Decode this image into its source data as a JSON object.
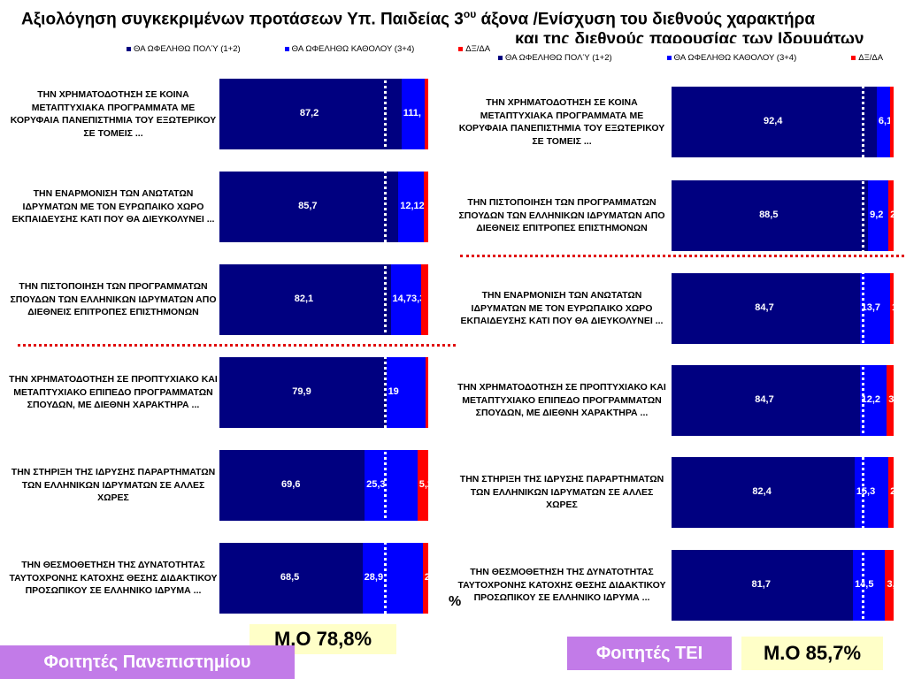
{
  "title": {
    "line1": "Αξιολόγηση συγκεκριμένων προτάσεων Υπ. Παιδείας 3",
    "sup": "ου",
    "line1_tail": " άξονα /Ενίσχυση του διεθνούς χαρακτήρα",
    "line2": "και της διεθνούς παρουσίας των Ιδρυμάτων"
  },
  "legend": {
    "items": [
      "ΘΑ ΩΦΕΛΗΘΩ ΠΟΛΎ (1+2)",
      "ΘΑ ΩΦΕΛΗΘΩ ΚΑΘΟΛΟΥ (3+4)",
      "ΔΞ/ΔΑ"
    ],
    "right_items": [
      "ΘΑ ΩΦΕΛΗΘΩ ΠΟΛΎ (1+2)",
      "ΘΑ ΩΦΕΛΗΘΩ ΚΑΘΟΛΟΥ (3+4)",
      "ΔΞ/ΔΑ"
    ]
  },
  "colors": {
    "much": "#000080",
    "not_at_all": "#0000ff",
    "dk": "#ff0000",
    "badge": "#c27be8",
    "mean_bg": "#ffffc8"
  },
  "chart_data": [
    {
      "type": "bar",
      "stacked": true,
      "orientation": "horizontal",
      "categories": [
        "ΤΗΝ ΧΡΗΜΑΤΟΔΟΤΗΣΗ ΣΕ ΚΟΙΝΑ ΜΕΤΑΠΤΥΧΙΑΚΑ ΠΡΟΓΡΑΜΜΑΤΑ ΜΕ ΚΟΡΥΦΑΙΑ ΠΑΝΕΠΙΣΤΗΜΙΑ ΤΟΥ ΕΞΩΤΕΡΙΚΟΥ ΣΕ ΤΟΜΕΙΣ ...",
        "ΤΗΝ ΕΝΑΡΜΟΝΙΣΗ ΤΩΝ ΑΝΩΤΑΤΩΝ ΙΔΡΥΜΑΤΩΝ ΜΕ ΤΟΝ ΕΥΡΩΠΑΙΚΟ ΧΩΡΟ ΕΚΠΑΙΔΕΥΣΗΣ ΚΑΤΙ ΠΟΥ ΘΑ ΔΙΕΥΚΟΛΥΝΕΙ ...",
        "ΤΗΝ ΠΙΣΤΟΠΟΙΗΣΗ ΤΩΝ ΠΡΟΓΡΑΜΜΑΤΩΝ ΣΠΟΥΔΩΝ ΤΩΝ ΕΛΛΗΝΙΚΩΝ ΙΔΡΥΜΑΤΩΝ ΑΠΟ ΔΙΕΘΝΕΙΣ ΕΠΙΤΡΟΠΕΣ ΕΠΙΣΤΗΜΟΝΩΝ",
        "ΤΗΝ ΧΡΗΜΑΤΟΔΟΤΗΣΗ ΣΕ ΠΡΟΠΤΥΧΙΑΚΟ ΚΑΙ ΜΕΤΑΠΤΥΧΙΑΚΟ ΕΠΙΠΕΔΟ ΠΡΟΓΡΑΜΜΑΤΩΝ ΣΠΟΥΔΩΝ, ΜΕ ΔΙΕΘΝΗ ΧΑΡΑΚΤΗΡΑ ...",
        "ΤΗΝ ΣΤΗΡΙΞΗ ΤΗΣ ΙΔΡΥΣΗΣ ΠΑΡΑΡΤΗΜΑΤΩΝ ΤΩΝ ΕΛΛΗΝΙΚΩΝ ΙΔΡΥΜΑΤΩΝ ΣΕ ΑΛΛΕΣ ΧΩΡΕΣ",
        "ΤΗΝ ΘΕΣΜΟΘΕΤΗΣΗ ΤΗΣ ΔΥΝΑΤΟΤΗΤΑΣ ΤΑΥΤΟΧΡΟΝΗΣ ΚΑΤΟΧΗΣ ΘΕΣΗΣ ΔΙΔΑΚΤΙΚΟΥ ΠΡΟΣΩΠΙΚΟΥ ΣΕ ΕΛΛΗΝΙΚΟ ΙΔΡΥΜΑ ..."
      ],
      "series": [
        {
          "name": "ΘΑ ΩΦΕΛΗΘΩ ΠΟΛΎ (1+2)",
          "values": [
            87.2,
            85.7,
            82.1,
            79.9,
            69.6,
            68.5
          ]
        },
        {
          "name": "ΘΑ ΩΦΕΛΗΘΩ ΚΑΘΟΛΟΥ (3+4)",
          "values": [
            11.1,
            12.1,
            14.7,
            19.0,
            25.3,
            28.9
          ]
        },
        {
          "name": "ΔΞ/ΔΑ",
          "values": [
            1.7,
            2.2,
            3.3,
            1.1,
            5.2,
            2.6
          ]
        }
      ],
      "labels": [
        [
          "87,2",
          "111,",
          ""
        ],
        [
          "85,7",
          "12,12,",
          ""
        ],
        [
          "82,1",
          "14,73,3",
          ""
        ],
        [
          "79,9",
          "19",
          "1,"
        ],
        [
          "69,6",
          "25,3",
          "5,2"
        ],
        [
          "68,5",
          "28,9",
          "2,6"
        ]
      ],
      "xlim": [
        0,
        100
      ],
      "reference_line": 78.8,
      "mean_label": "Μ.Ο 78,8%",
      "group_label": "Φοιτητές Πανεπιστημίου",
      "legend_position": "top"
    },
    {
      "type": "bar",
      "stacked": true,
      "orientation": "horizontal",
      "categories": [
        "ΤΗΝ ΧΡΗΜΑΤΟΔΟΤΗΣΗ ΣΕ ΚΟΙΝΑ ΜΕΤΑΠΤΥΧΙΑΚΑ ΠΡΟΓΡΑΜΜΑΤΑ ΜΕ ΚΟΡΥΦΑΙΑ ΠΑΝΕΠΙΣΤΗΜΙΑ ΤΟΥ ΕΞΩΤΕΡΙΚΟΥ ΣΕ ΤΟΜΕΙΣ ...",
        "ΤΗΝ ΠΙΣΤΟΠΟΙΗΣΗ ΤΩΝ ΠΡΟΓΡΑΜΜΑΤΩΝ ΣΠΟΥΔΩΝ ΤΩΝ ΕΛΛΗΝΙΚΩΝ ΙΔΡΥΜΑΤΩΝ ΑΠΟ ΔΙΕΘΝΕΙΣ ΕΠΙΤΡΟΠΕΣ ΕΠΙΣΤΗΜΟΝΩΝ",
        "ΤΗΝ ΕΝΑΡΜΟΝΙΣΗ ΤΩΝ ΑΝΩΤΑΤΩΝ ΙΔΡΥΜΑΤΩΝ ΜΕ ΤΟΝ ΕΥΡΩΠΑΙΚΟ ΧΩΡΟ ΕΚΠΑΙΔΕΥΣΗΣ ΚΑΤΙ ΠΟΥ ΘΑ ΔΙΕΥΚΟΛΥΝΕΙ ...",
        "ΤΗΝ ΧΡΗΜΑΤΟΔΟΤΗΣΗ ΣΕ ΠΡΟΠΤΥΧΙΑΚΟ ΚΑΙ ΜΕΤΑΠΤΥΧΙΑΚΟ ΕΠΙΠΕΔΟ ΠΡΟΓΡΑΜΜΑΤΩΝ ΣΠΟΥΔΩΝ, ΜΕ ΔΙΕΘΝΗ ΧΑΡΑΚΤΗΡΑ ...",
        "ΤΗΝ ΣΤΗΡΙΞΗ ΤΗΣ ΙΔΡΥΣΗΣ ΠΑΡΑΡΤΗΜΑΤΩΝ ΤΩΝ ΕΛΛΗΝΙΚΩΝ ΙΔΡΥΜΑΤΩΝ ΣΕ ΑΛΛΕΣ ΧΩΡΕΣ",
        "ΤΗΝ ΘΕΣΜΟΘΕΤΗΣΗ ΤΗΣ ΔΥΝΑΤΟΤΗΤΑΣ ΤΑΥΤΟΧΡΟΝΗΣ ΚΑΤΟΧΗΣ ΘΕΣΗΣ ΔΙΔΑΚΤΙΚΟΥ ΠΡΟΣΩΠΙΚΟΥ ΣΕ ΕΛΛΗΝΙΚΟ ΙΔΡΥΜΑ ..."
      ],
      "series": [
        {
          "name": "ΘΑ ΩΦΕΛΗΘΩ ΠΟΛΎ (1+2)",
          "values": [
            92.4,
            88.5,
            84.7,
            84.7,
            82.4,
            81.7
          ]
        },
        {
          "name": "ΘΑ ΩΦΕΛΗΘΩ ΚΑΘΟΛΟΥ (3+4)",
          "values": [
            6.1,
            9.2,
            13.7,
            12.2,
            15.3,
            14.5
          ]
        },
        {
          "name": "ΔΞ/ΔΑ",
          "values": [
            1.5,
            2.3,
            1.6,
            3.1,
            2.3,
            3.8
          ]
        }
      ],
      "labels": [
        [
          "92,4",
          "6,1",
          ""
        ],
        [
          "88,5",
          "9,2",
          "2,"
        ],
        [
          "84,7",
          "13,7",
          "1,"
        ],
        [
          "84,7",
          "12,2",
          "3,"
        ],
        [
          "82,4",
          "15,3",
          "2,"
        ],
        [
          "81,7",
          "14,5",
          "3,8"
        ]
      ],
      "xlim": [
        0,
        100
      ],
      "reference_line": 85.7,
      "mean_label": "Μ.Ο 85,7%",
      "group_label": "Φοιτητές ΤΕΙ",
      "unit_label": "%",
      "legend_position": "top"
    }
  ]
}
